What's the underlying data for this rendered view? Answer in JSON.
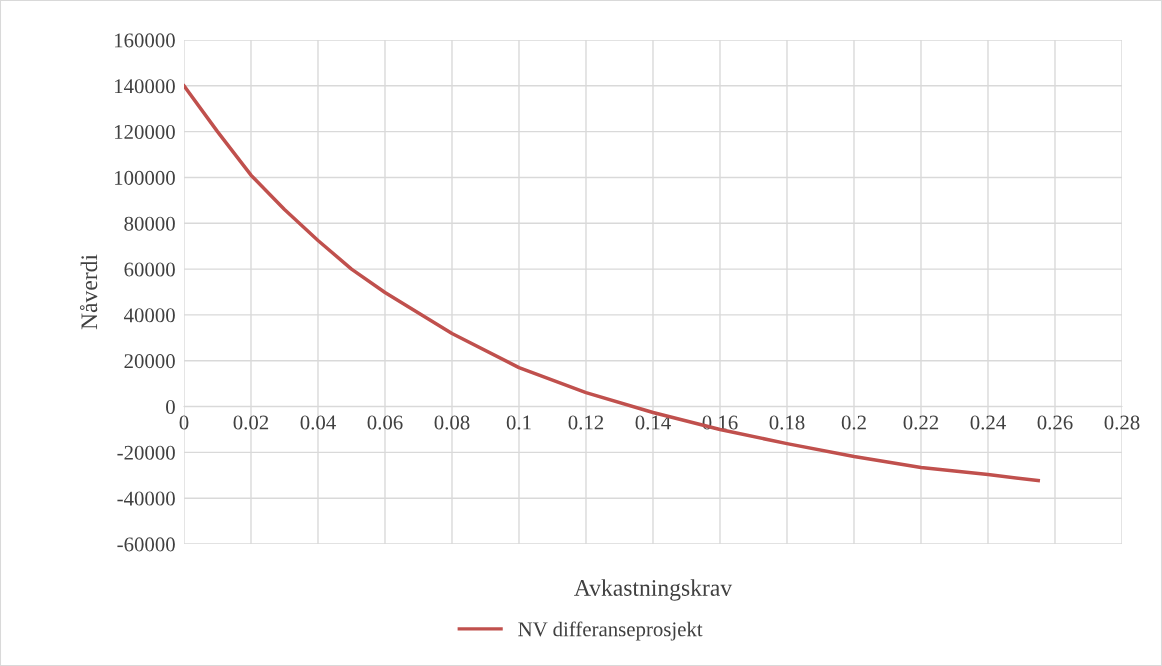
{
  "chart_data": {
    "type": "line",
    "xlabel": "Avkastningskrav",
    "ylabel": "Nåverdi",
    "series": [
      {
        "name": "NV differanseprosjekt",
        "color": "#c0504d",
        "x": [
          0,
          0.01,
          0.02,
          0.03,
          0.04,
          0.05,
          0.06,
          0.08,
          0.1,
          0.12,
          0.14,
          0.16,
          0.18,
          0.2,
          0.22,
          0.24,
          0.255
        ],
        "values": [
          140000,
          120000,
          101000,
          86000,
          72500,
          60000,
          49800,
          31900,
          17000,
          6100,
          -2600,
          -10000,
          -16200,
          -21800,
          -26600,
          -29700,
          -32300
        ]
      }
    ],
    "xlim": [
      0,
      0.28
    ],
    "xticks": [
      0,
      0.02,
      0.04,
      0.06,
      0.08,
      0.1,
      0.12,
      0.14,
      0.16,
      0.18,
      0.2,
      0.22,
      0.24,
      0.26,
      0.28
    ],
    "ylim": [
      -60000,
      160000
    ],
    "yticks": [
      -60000,
      -40000,
      -20000,
      0,
      20000,
      40000,
      60000,
      80000,
      100000,
      120000,
      140000,
      160000
    ],
    "grid": true,
    "legend": "bottom",
    "marker": "none",
    "line_style": "solid"
  }
}
